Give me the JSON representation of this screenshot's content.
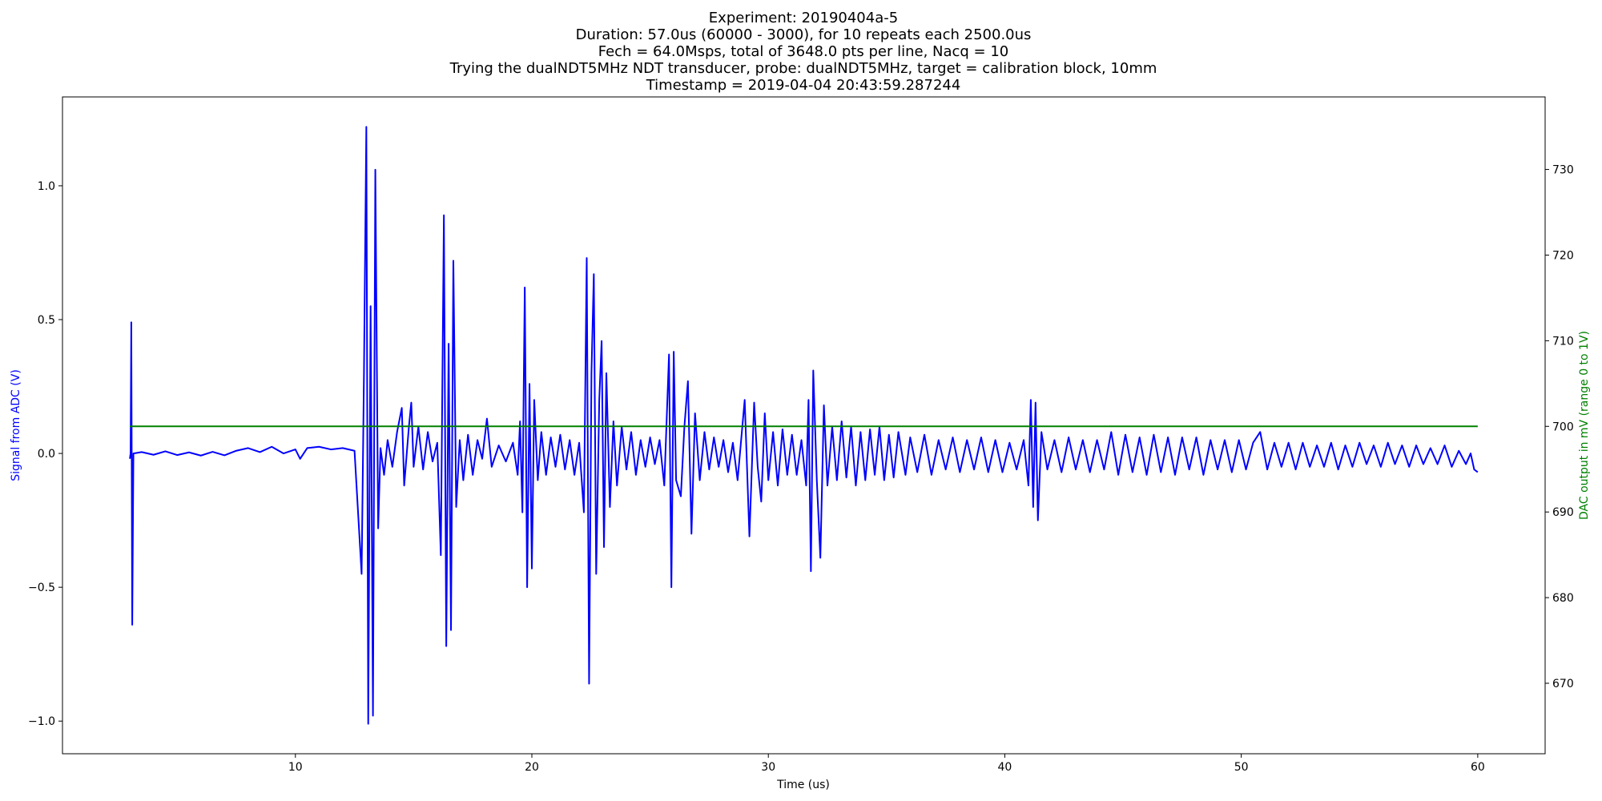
{
  "chart_data": {
    "type": "line",
    "title": [
      "Experiment: 20190404a-5",
      "Duration: 57.0us (60000 - 3000), for 10 repeats each 2500.0us",
      "Fech = 64.0Msps, total of 3648.0 pts per line, Nacq = 10",
      "Trying the dualNDT5MHz NDT transducer, probe: dualNDT5MHz, target = calibration block, 10mm",
      "Timestamp = 2019-04-04 20:43:59.287244"
    ],
    "xlabel": "Time (us)",
    "ylabel": "Signal from ADC (V)",
    "y2label": "DAC output in mV (range 0 to 1V)",
    "ylabel_color": "#0000ff",
    "y2label_color": "#008000",
    "xlim": [
      0.15,
      62.85
    ],
    "xticks": [
      10,
      20,
      30,
      40,
      50,
      60
    ],
    "ylim": [
      -1.122,
      1.332
    ],
    "yticks": [
      {
        "value": -1.0,
        "label": "−1.0"
      },
      {
        "value": -0.5,
        "label": "−0.5"
      },
      {
        "value": 0.0,
        "label": "0.0"
      },
      {
        "value": 0.5,
        "label": "0.5"
      },
      {
        "value": 1.0,
        "label": "1.0"
      }
    ],
    "y2lim": [
      661.77,
      738.47
    ],
    "y2ticks": [
      670,
      680,
      690,
      700,
      710,
      720,
      730
    ],
    "grid": false,
    "series": [
      {
        "color": "#0000ff",
        "axis": "y",
        "x": [
          3.0,
          3.03,
          3.06,
          3.1,
          3.15,
          3.5,
          4.0,
          4.5,
          5.0,
          5.5,
          6.0,
          6.5,
          7.0,
          7.5,
          8.0,
          8.5,
          9.0,
          9.5,
          10.0,
          10.2,
          10.5,
          11.0,
          11.5,
          12.0,
          12.5,
          12.8,
          12.9,
          13.0,
          13.08,
          13.18,
          13.28,
          13.38,
          13.5,
          13.6,
          13.75,
          13.9,
          14.1,
          14.3,
          14.5,
          14.6,
          14.8,
          14.9,
          15.0,
          15.2,
          15.4,
          15.6,
          15.8,
          16.0,
          16.15,
          16.28,
          16.38,
          16.48,
          16.58,
          16.68,
          16.8,
          16.95,
          17.1,
          17.3,
          17.5,
          17.7,
          17.9,
          18.1,
          18.3,
          18.6,
          18.9,
          19.2,
          19.4,
          19.5,
          19.6,
          19.7,
          19.8,
          19.9,
          20.0,
          20.1,
          20.25,
          20.4,
          20.6,
          20.8,
          21.0,
          21.2,
          21.4,
          21.6,
          21.8,
          22.0,
          22.2,
          22.32,
          22.42,
          22.52,
          22.62,
          22.72,
          22.85,
          22.95,
          23.05,
          23.15,
          23.3,
          23.45,
          23.6,
          23.8,
          24.0,
          24.2,
          24.4,
          24.6,
          24.8,
          25.0,
          25.2,
          25.4,
          25.6,
          25.8,
          25.9,
          26.0,
          26.1,
          26.3,
          26.45,
          26.6,
          26.75,
          26.9,
          27.1,
          27.3,
          27.5,
          27.7,
          27.9,
          28.1,
          28.3,
          28.5,
          28.7,
          29.0,
          29.2,
          29.4,
          29.55,
          29.7,
          29.85,
          30.0,
          30.2,
          30.4,
          30.6,
          30.8,
          31.0,
          31.2,
          31.4,
          31.6,
          31.7,
          31.8,
          31.9,
          32.05,
          32.2,
          32.35,
          32.5,
          32.7,
          32.9,
          33.1,
          33.3,
          33.5,
          33.7,
          33.9,
          34.1,
          34.3,
          34.5,
          34.7,
          34.9,
          35.1,
          35.3,
          35.5,
          35.8,
          36.0,
          36.3,
          36.6,
          36.9,
          37.2,
          37.5,
          37.8,
          38.1,
          38.4,
          38.7,
          39.0,
          39.3,
          39.6,
          39.9,
          40.2,
          40.5,
          40.8,
          41.0,
          41.1,
          41.2,
          41.3,
          41.4,
          41.55,
          41.8,
          42.1,
          42.4,
          42.7,
          43.0,
          43.3,
          43.6,
          43.9,
          44.2,
          44.5,
          44.8,
          45.1,
          45.4,
          45.7,
          46.0,
          46.3,
          46.6,
          46.9,
          47.2,
          47.5,
          47.8,
          48.1,
          48.4,
          48.7,
          49.0,
          49.3,
          49.6,
          49.9,
          50.2,
          50.5,
          50.8,
          51.1,
          51.4,
          51.7,
          52.0,
          52.3,
          52.6,
          52.9,
          53.2,
          53.5,
          53.8,
          54.1,
          54.4,
          54.7,
          55.0,
          55.3,
          55.6,
          55.9,
          56.2,
          56.5,
          56.8,
          57.1,
          57.4,
          57.7,
          58.0,
          58.3,
          58.6,
          58.9,
          59.2,
          59.5,
          59.7,
          59.85,
          60.0
        ],
        "values": [
          -0.02,
          0.0,
          0.49,
          -0.64,
          0.0,
          0.005,
          -0.005,
          0.008,
          -0.006,
          0.004,
          -0.008,
          0.006,
          -0.007,
          0.01,
          0.02,
          0.005,
          0.025,
          0.0,
          0.015,
          -0.02,
          0.02,
          0.025,
          0.015,
          0.02,
          0.01,
          -0.45,
          0.3,
          1.22,
          -1.01,
          0.55,
          -0.98,
          1.06,
          -0.28,
          0.02,
          -0.08,
          0.05,
          -0.05,
          0.08,
          0.17,
          -0.12,
          0.1,
          0.19,
          -0.05,
          0.1,
          -0.06,
          0.08,
          -0.03,
          0.04,
          -0.38,
          0.89,
          -0.72,
          0.41,
          -0.66,
          0.72,
          -0.2,
          0.05,
          -0.1,
          0.07,
          -0.08,
          0.05,
          -0.02,
          0.13,
          -0.05,
          0.03,
          -0.03,
          0.04,
          -0.08,
          0.12,
          -0.22,
          0.62,
          -0.5,
          0.26,
          -0.43,
          0.2,
          -0.1,
          0.08,
          -0.08,
          0.06,
          -0.05,
          0.07,
          -0.06,
          0.05,
          -0.08,
          0.04,
          -0.22,
          0.73,
          -0.86,
          0.3,
          0.67,
          -0.45,
          0.2,
          0.42,
          -0.35,
          0.3,
          -0.2,
          0.12,
          -0.12,
          0.1,
          -0.06,
          0.08,
          -0.08,
          0.05,
          -0.05,
          0.06,
          -0.04,
          0.05,
          -0.12,
          0.37,
          -0.5,
          0.38,
          -0.1,
          -0.16,
          0.1,
          0.27,
          -0.3,
          0.15,
          -0.1,
          0.08,
          -0.06,
          0.06,
          -0.05,
          0.05,
          -0.07,
          0.04,
          -0.1,
          0.2,
          -0.31,
          0.19,
          -0.05,
          -0.18,
          0.15,
          -0.1,
          0.08,
          -0.12,
          0.09,
          -0.08,
          0.07,
          -0.08,
          0.05,
          -0.12,
          0.2,
          -0.44,
          0.31,
          -0.1,
          -0.39,
          0.18,
          -0.12,
          0.1,
          -0.1,
          0.12,
          -0.09,
          0.1,
          -0.12,
          0.08,
          -0.1,
          0.09,
          -0.08,
          0.1,
          -0.1,
          0.07,
          -0.09,
          0.08,
          -0.08,
          0.06,
          -0.07,
          0.07,
          -0.08,
          0.05,
          -0.06,
          0.06,
          -0.07,
          0.05,
          -0.06,
          0.06,
          -0.07,
          0.05,
          -0.07,
          0.04,
          -0.06,
          0.05,
          -0.12,
          0.2,
          -0.2,
          0.19,
          -0.25,
          0.08,
          -0.06,
          0.05,
          -0.07,
          0.06,
          -0.06,
          0.05,
          -0.07,
          0.05,
          -0.06,
          0.08,
          -0.08,
          0.07,
          -0.07,
          0.06,
          -0.08,
          0.07,
          -0.07,
          0.06,
          -0.08,
          0.06,
          -0.06,
          0.06,
          -0.08,
          0.05,
          -0.06,
          0.05,
          -0.07,
          0.05,
          -0.06,
          0.04,
          0.08,
          -0.06,
          0.04,
          -0.05,
          0.04,
          -0.06,
          0.04,
          -0.05,
          0.03,
          -0.05,
          0.04,
          -0.06,
          0.03,
          -0.05,
          0.04,
          -0.04,
          0.03,
          -0.05,
          0.04,
          -0.04,
          0.03,
          -0.05,
          0.03,
          -0.04,
          0.02,
          -0.04,
          0.03,
          -0.05,
          0.01,
          -0.04,
          0.0,
          -0.06,
          -0.07
        ]
      },
      {
        "color": "#008000",
        "axis": "y2",
        "x": [
          3,
          60
        ],
        "values": [
          700,
          700
        ]
      }
    ]
  }
}
